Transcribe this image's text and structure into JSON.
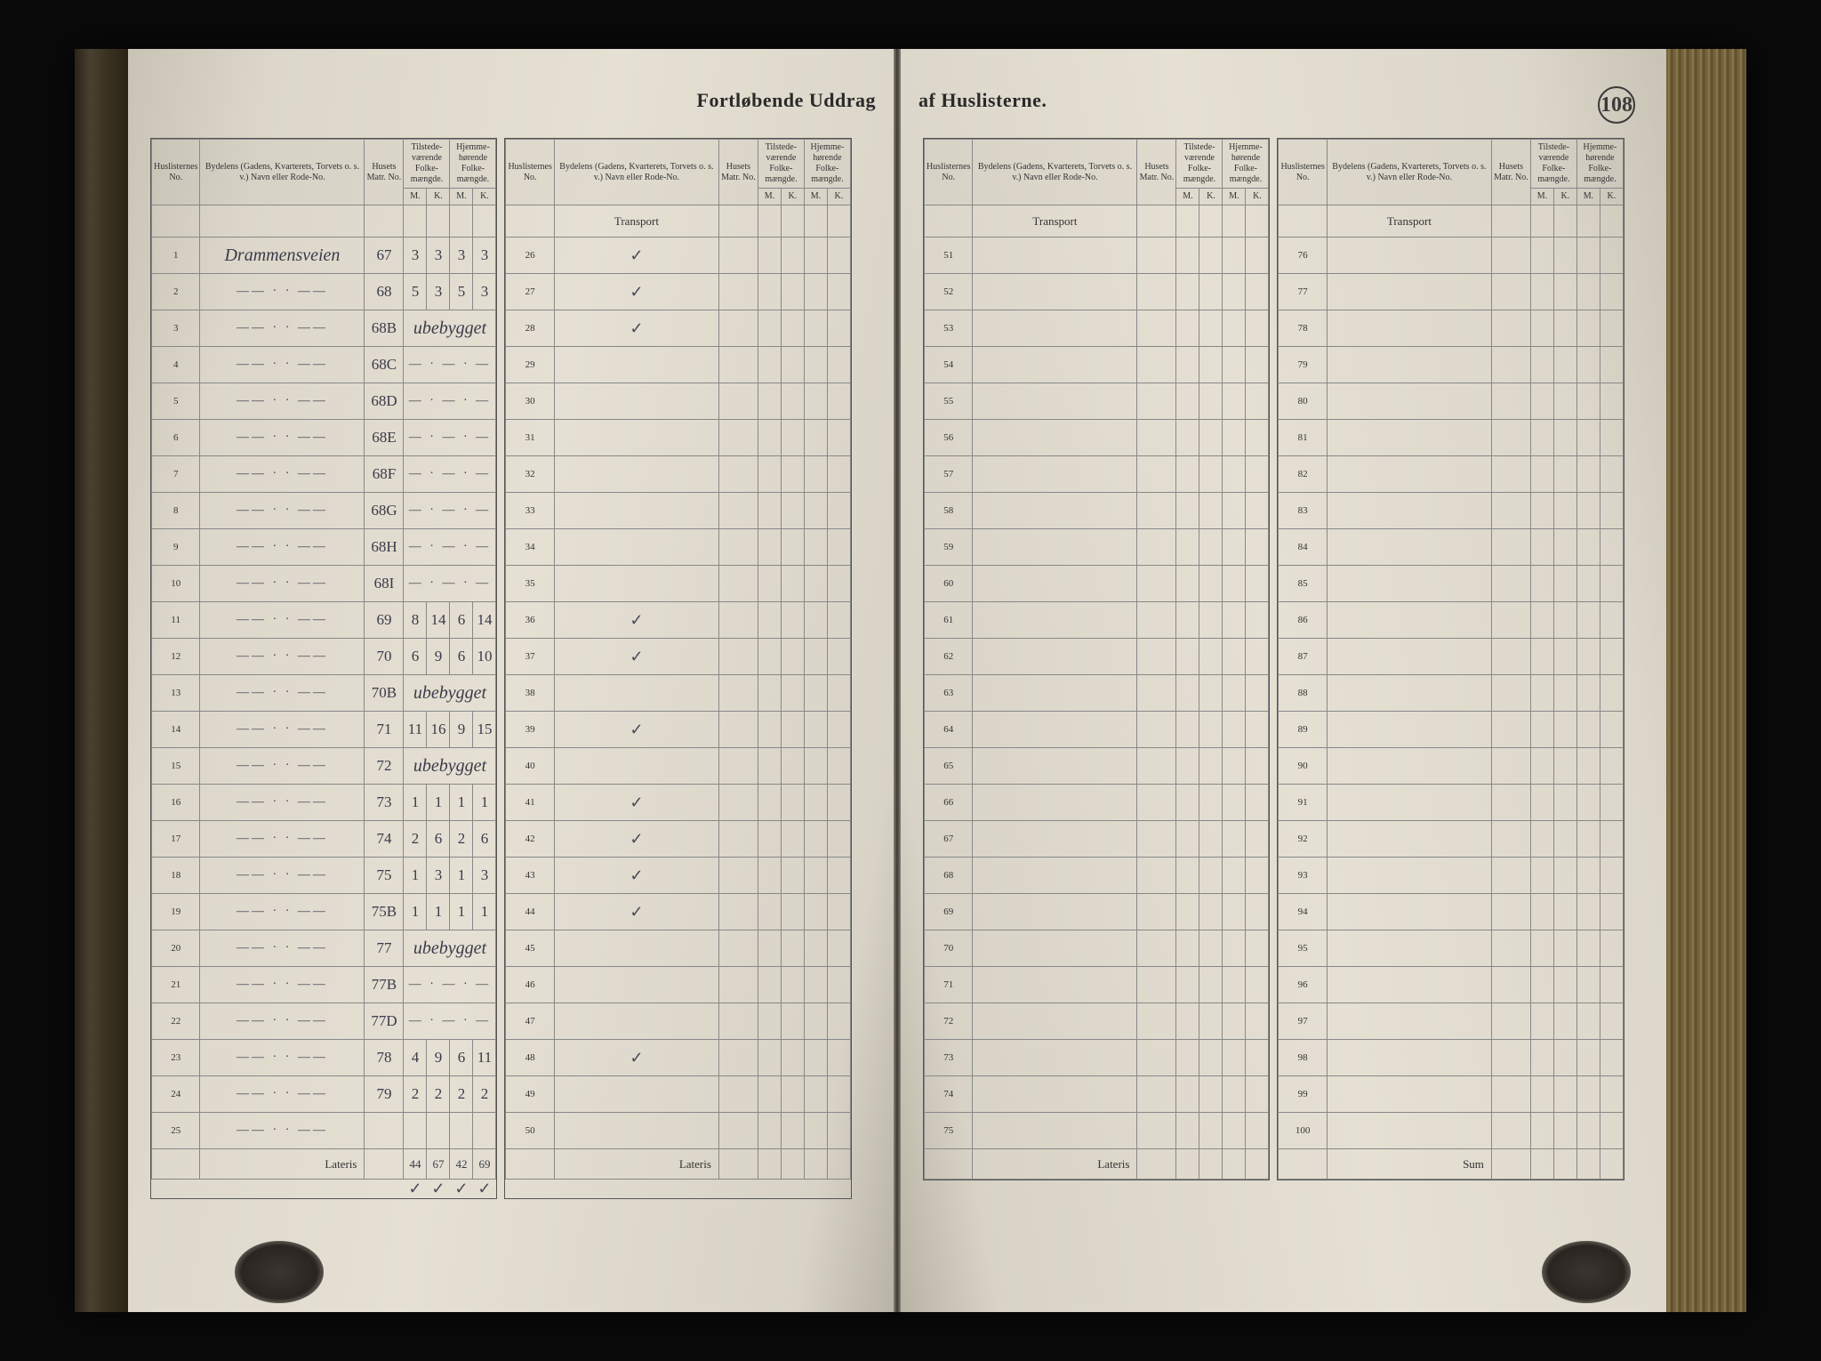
{
  "title_left": "Fortløbende Uddrag",
  "title_right": "af Huslisterne.",
  "page_number": "108",
  "headers": {
    "no": "Huslisternes No.",
    "name": "Bydelens (Gadens, Kvarterets, Torvets o. s. v.) Navn eller Rode-No.",
    "matr": "Husets Matr. No.",
    "tilstede": "Tilstede-værende Folke-mængde.",
    "hjemme": "Hjemme-hørende Folke-mængde.",
    "m": "M.",
    "k": "K."
  },
  "transport": "Transport",
  "lateris": "Lateris",
  "sum": "Sum",
  "street": "Drammensveien",
  "ditto": "—— · · ——",
  "ubebygget": "ubebygget",
  "rows_b1": [
    {
      "n": "1",
      "name_first": true,
      "matr": "67",
      "tm": "3",
      "tk": "3",
      "hm": "3",
      "hk": "3"
    },
    {
      "n": "2",
      "matr": "68",
      "tm": "5",
      "tk": "3",
      "hm": "5",
      "hk": "3"
    },
    {
      "n": "3",
      "matr": "68B",
      "ubeb": true
    },
    {
      "n": "4",
      "matr": "68C",
      "dashes": true
    },
    {
      "n": "5",
      "matr": "68D",
      "dashes": true
    },
    {
      "n": "6",
      "matr": "68E",
      "dashes": true
    },
    {
      "n": "7",
      "matr": "68F",
      "dashes": true
    },
    {
      "n": "8",
      "matr": "68G",
      "dashes": true
    },
    {
      "n": "9",
      "matr": "68H",
      "dashes": true
    },
    {
      "n": "10",
      "matr": "68I",
      "dashes": true
    },
    {
      "n": "11",
      "matr": "69",
      "tm": "8",
      "tk": "14",
      "hm": "6",
      "hk": "14"
    },
    {
      "n": "12",
      "matr": "70",
      "tm": "6",
      "tk": "9",
      "hm": "6",
      "hk": "10"
    },
    {
      "n": "13",
      "matr": "70B",
      "ubeb": true
    },
    {
      "n": "14",
      "matr": "71",
      "tm": "11",
      "tk": "16",
      "hm": "9",
      "hk": "15"
    },
    {
      "n": "15",
      "matr": "72",
      "ubeb": true
    },
    {
      "n": "16",
      "matr": "73",
      "tm": "1",
      "tk": "1",
      "hm": "1",
      "hk": "1"
    },
    {
      "n": "17",
      "matr": "74",
      "tm": "2",
      "tk": "6",
      "hm": "2",
      "hk": "6"
    },
    {
      "n": "18",
      "matr": "75",
      "tm": "1",
      "tk": "3",
      "hm": "1",
      "hk": "3"
    },
    {
      "n": "19",
      "matr": "75B",
      "tm": "1",
      "tk": "1",
      "hm": "1",
      "hk": "1"
    },
    {
      "n": "20",
      "matr": "77",
      "ubeb": true
    },
    {
      "n": "21",
      "matr": "77B",
      "dashes": true
    },
    {
      "n": "22",
      "matr": "77D",
      "dashes": true
    },
    {
      "n": "23",
      "matr": "78",
      "tm": "4",
      "tk": "9",
      "hm": "6",
      "hk": "11"
    },
    {
      "n": "24",
      "matr": "79",
      "tm": "2",
      "tk": "2",
      "hm": "2",
      "hk": "2"
    },
    {
      "n": "25"
    }
  ],
  "totals_b1": {
    "tm": "44",
    "tk": "67",
    "hm": "42",
    "hk": "69"
  },
  "checks_b1": {
    "tm": "✓",
    "tk": "✓",
    "hm": "✓",
    "hk": "✓"
  },
  "rows_b2": [
    {
      "n": "26",
      "chk": "✓"
    },
    {
      "n": "27",
      "chk": "✓"
    },
    {
      "n": "28",
      "chk": "✓"
    },
    {
      "n": "29"
    },
    {
      "n": "30"
    },
    {
      "n": "31"
    },
    {
      "n": "32"
    },
    {
      "n": "33"
    },
    {
      "n": "34"
    },
    {
      "n": "35"
    },
    {
      "n": "36",
      "chk": "✓"
    },
    {
      "n": "37",
      "chk": "✓"
    },
    {
      "n": "38"
    },
    {
      "n": "39",
      "chk": "✓"
    },
    {
      "n": "40"
    },
    {
      "n": "41",
      "chk": "✓"
    },
    {
      "n": "42",
      "chk": "✓"
    },
    {
      "n": "43",
      "chk": "✓"
    },
    {
      "n": "44",
      "chk": "✓"
    },
    {
      "n": "45"
    },
    {
      "n": "46"
    },
    {
      "n": "47"
    },
    {
      "n": "48",
      "chk": "✓"
    },
    {
      "n": "49"
    },
    {
      "n": "50"
    }
  ],
  "rows_b3": [
    51,
    52,
    53,
    54,
    55,
    56,
    57,
    58,
    59,
    60,
    61,
    62,
    63,
    64,
    65,
    66,
    67,
    68,
    69,
    70,
    71,
    72,
    73,
    74,
    75
  ],
  "rows_b4": [
    76,
    77,
    78,
    79,
    80,
    81,
    82,
    83,
    84,
    85,
    86,
    87,
    88,
    89,
    90,
    91,
    92,
    93,
    94,
    95,
    96,
    97,
    98,
    99,
    100
  ]
}
